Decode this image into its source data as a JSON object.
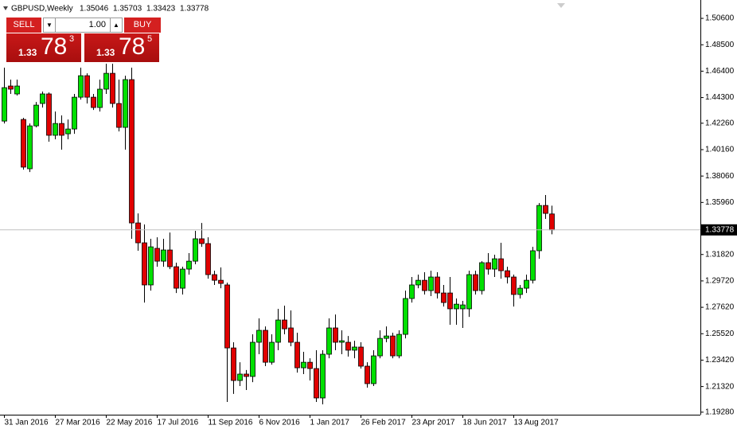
{
  "chart_data": {
    "type": "candlestick",
    "title": "GBPUSD,Weekly",
    "categories": [
      "31 Jan 2016",
      null,
      null,
      null,
      null,
      null,
      null,
      null,
      "27 Mar 2016",
      null,
      null,
      null,
      null,
      null,
      null,
      null,
      "22 May 2016",
      null,
      null,
      null,
      null,
      null,
      null,
      null,
      "17 Jul 2016",
      null,
      null,
      null,
      null,
      null,
      null,
      null,
      "11 Sep 2016",
      null,
      null,
      null,
      null,
      null,
      null,
      null,
      "6 Nov 2016",
      null,
      null,
      null,
      null,
      null,
      null,
      null,
      "1 Jan 2017",
      null,
      null,
      null,
      null,
      null,
      null,
      null,
      "26 Feb 2017",
      null,
      null,
      null,
      null,
      null,
      null,
      null,
      "23 Apr 2017",
      null,
      null,
      null,
      null,
      null,
      null,
      null,
      "18 Jun 2017",
      null,
      null,
      null,
      null,
      null,
      null,
      null,
      "13 Aug 2017",
      null,
      null,
      null,
      null,
      null,
      null
    ],
    "open": [
      1.4243,
      1.4522,
      1.4459,
      1.4256,
      1.3864,
      1.4205,
      1.4383,
      1.4459,
      1.413,
      1.4224,
      1.4142,
      1.418,
      1.4433,
      1.4604,
      1.4433,
      1.4351,
      1.4497,
      1.4623,
      1.4383,
      1.4193,
      1.4573,
      1.3433,
      1.3275,
      1.294,
      1.3231,
      1.3129,
      1.3218,
      1.3085,
      1.2914,
      1.3066,
      1.3129,
      1.3307,
      1.3269,
      1.3022,
      1.2977,
      1.294,
      1.2439,
      1.218,
      1.2231,
      1.2212,
      1.2484,
      1.2579,
      1.2325,
      1.2484,
      1.2661,
      1.2598,
      1.2484,
      1.2281,
      1.2325,
      1.2275,
      1.2041,
      1.2389,
      1.2598,
      1.2484,
      1.2484,
      1.2421,
      1.2446,
      1.2294,
      1.2155,
      1.2376,
      1.2515,
      1.2534,
      1.2376,
      1.2547,
      1.2832,
      1.294,
      1.2977,
      1.2895,
      1.3003,
      1.2876,
      1.2876,
      1.275,
      1.275,
      1.275,
      1.3022,
      1.2895,
      1.3117,
      1.3066,
      1.3148,
      1.3053,
      1.3003,
      1.2864,
      1.2914,
      1.2977,
      1.3212,
      1.3572,
      1.35046
    ],
    "high": [
      1.4668,
      1.4573,
      1.4573,
      1.4269,
      1.4224,
      1.4395,
      1.4478,
      1.4471,
      1.4319,
      1.4288,
      1.4256,
      1.4459,
      1.4668,
      1.4623,
      1.4459,
      1.4573,
      1.4699,
      1.4699,
      1.4573,
      1.4604,
      1.4668,
      1.3509,
      1.3421,
      1.3307,
      1.3319,
      1.3307,
      1.3357,
      1.3117,
      1.3085,
      1.3193,
      1.337,
      1.3433,
      1.3319,
      1.3053,
      1.3079,
      1.2958,
      1.2484,
      1.2325,
      1.2263,
      1.2547,
      1.2674,
      1.261,
      1.2547,
      1.275,
      1.2775,
      1.2737,
      1.256,
      1.2408,
      1.2357,
      1.2421,
      1.2421,
      1.2674,
      1.2705,
      1.2579,
      1.2534,
      1.2496,
      1.2484,
      1.2325,
      1.2421,
      1.2579,
      1.261,
      1.256,
      1.2579,
      1.2895,
      1.3003,
      1.3022,
      1.3041,
      1.3053,
      1.3041,
      1.294,
      1.3003,
      1.2832,
      1.2813,
      1.3053,
      1.3053,
      1.3129,
      1.3193,
      1.318,
      1.3275,
      1.3085,
      1.3022,
      1.294,
      1.3022,
      1.3243,
      1.3591,
      1.3655,
      1.35703
    ],
    "low": [
      1.4224,
      1.4459,
      1.4446,
      1.3857,
      1.3838,
      1.4193,
      1.4351,
      1.4079,
      1.4098,
      1.4016,
      1.4098,
      1.4142,
      1.4414,
      1.4383,
      1.4332,
      1.4319,
      1.4459,
      1.4351,
      1.4161,
      1.4016,
      1.3307,
      1.3212,
      1.28,
      1.2895,
      1.3085,
      1.3085,
      1.3066,
      1.2876,
      1.2864,
      1.3022,
      1.3104,
      1.3243,
      1.299,
      1.294,
      1.2914,
      1.2009,
      1.2073,
      1.2136,
      1.2104,
      1.2167,
      1.2389,
      1.2294,
      1.2306,
      1.2421,
      1.2547,
      1.2452,
      1.2243,
      1.2231,
      1.218,
      1.2009,
      1.199,
      1.2357,
      1.2421,
      1.2389,
      1.237,
      1.2357,
      1.2275,
      1.2123,
      1.2136,
      1.2357,
      1.2484,
      1.2357,
      1.2357,
      1.2515,
      1.28,
      1.2914,
      1.2864,
      1.2851,
      1.2832,
      1.2768,
      1.2623,
      1.2623,
      1.2598,
      1.2686,
      1.2864,
      1.2864,
      1.3022,
      1.3003,
      1.299,
      1.2952,
      1.2768,
      1.2832,
      1.2876,
      1.2952,
      1.3148,
      1.3465,
      1.33423
    ],
    "close": [
      1.4509,
      1.4497,
      1.4522,
      1.3877,
      1.4205,
      1.437,
      1.4459,
      1.413,
      1.4224,
      1.413,
      1.418,
      1.4433,
      1.4604,
      1.4433,
      1.4351,
      1.4497,
      1.4623,
      1.4383,
      1.4193,
      1.4573,
      1.3433,
      1.3275,
      1.294,
      1.3243,
      1.3129,
      1.3218,
      1.3085,
      1.2914,
      1.3066,
      1.3129,
      1.3307,
      1.3269,
      1.3022,
      1.2977,
      1.2952,
      1.2439,
      1.218,
      1.2231,
      1.2212,
      1.2484,
      1.2579,
      1.2325,
      1.2484,
      1.2661,
      1.2591,
      1.2484,
      1.2281,
      1.2325,
      1.2275,
      1.2041,
      1.2389,
      1.2598,
      1.2484,
      1.2496,
      1.2421,
      1.2446,
      1.2294,
      1.2155,
      1.2376,
      1.2515,
      1.2534,
      1.2376,
      1.2547,
      1.2832,
      1.294,
      1.2977,
      1.2895,
      1.3003,
      1.2876,
      1.28,
      1.275,
      1.2787,
      1.2781,
      1.3022,
      1.2895,
      1.3117,
      1.3066,
      1.3148,
      1.3053,
      1.3003,
      1.2864,
      1.2914,
      1.2977,
      1.3212,
      1.3572,
      1.3509,
      1.33778
    ],
    "up_color": "#00e000",
    "down_color": "#e00000",
    "ylim": [
      1.1908,
      1.5206
    ],
    "yticks": [
      {
        "value": 1.506,
        "label": "1.50600"
      },
      {
        "value": 1.485,
        "label": "1.48500"
      },
      {
        "value": 1.464,
        "label": "1.46400"
      },
      {
        "value": 1.443,
        "label": "1.44300"
      },
      {
        "value": 1.4226,
        "label": "1.42260"
      },
      {
        "value": 1.4016,
        "label": "1.40160"
      },
      {
        "value": 1.3806,
        "label": "1.38060"
      },
      {
        "value": 1.3596,
        "label": "1.35960"
      },
      {
        "value": 1.3182,
        "label": "1.31820"
      },
      {
        "value": 1.2972,
        "label": "1.29720"
      },
      {
        "value": 1.2762,
        "label": "1.27620"
      },
      {
        "value": 1.2552,
        "label": "1.25520"
      },
      {
        "value": 1.2342,
        "label": "1.23420"
      },
      {
        "value": 1.2132,
        "label": "1.21320"
      },
      {
        "value": 1.1928,
        "label": "1.19280"
      }
    ],
    "grid": false
  },
  "trade_panel": {
    "sell_label": "SELL",
    "lot": "1.00",
    "buy_label": "BUY",
    "sell_price": {
      "prefix": "1.33",
      "big": "78",
      "small": "3"
    },
    "buy_price": {
      "prefix": "1.33",
      "big": "78",
      "small": "5"
    }
  }
}
